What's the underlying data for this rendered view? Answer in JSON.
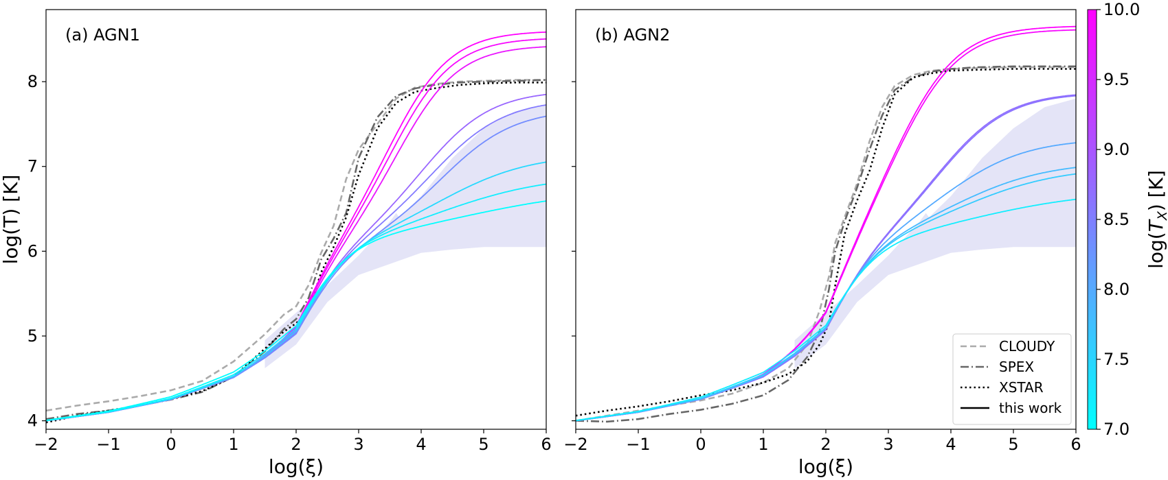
{
  "colors": {
    "cmap_low": "#00ffff",
    "cmap_high": "#ff00ff",
    "cloudy": "#aaaaaa",
    "spex": "#666666",
    "xstar": "#000000",
    "band": "#e4e4f7"
  },
  "chart_data": [
    {
      "type": "line",
      "panel_label": "(a) AGN1",
      "xlabel": "log(ξ)",
      "ylabel": "log(T)   [K]",
      "xlim": [
        -2,
        6
      ],
      "ylim": [
        3.9,
        8.85
      ],
      "xticks": [
        -2,
        -1,
        0,
        1,
        2,
        3,
        4,
        5,
        6
      ],
      "yticks": [
        4,
        5,
        6,
        7,
        8
      ],
      "shaded_band": {
        "upper": [
          [
            1.5,
            4.95
          ],
          [
            2.5,
            5.6
          ],
          [
            3.0,
            5.95
          ],
          [
            3.5,
            6.35
          ],
          [
            3.6,
            6.45
          ],
          [
            3.65,
            6.4
          ],
          [
            4.0,
            6.65
          ],
          [
            4.5,
            7.1
          ],
          [
            5.0,
            7.45
          ],
          [
            5.5,
            7.65
          ],
          [
            6.0,
            7.72
          ]
        ],
        "lower": [
          [
            6.0,
            6.05
          ],
          [
            5.0,
            6.05
          ],
          [
            4.5,
            6.02
          ],
          [
            4.0,
            5.98
          ],
          [
            3.0,
            5.72
          ],
          [
            2.5,
            5.4
          ],
          [
            2.0,
            4.9
          ],
          [
            1.5,
            4.62
          ]
        ]
      },
      "series": [
        {
          "name": "CLOUDY",
          "style": "dashed",
          "x": [
            -2,
            -1.5,
            -1,
            -0.5,
            0,
            0.5,
            1,
            1.5,
            1.8,
            2,
            2.2,
            2.4,
            2.6,
            2.8,
            3.0,
            3.3,
            3.6,
            3.9,
            4.2,
            4.6,
            5,
            5.5,
            6
          ],
          "y": [
            4.12,
            4.18,
            4.23,
            4.29,
            4.36,
            4.47,
            4.7,
            5.02,
            5.25,
            5.35,
            5.6,
            5.98,
            6.3,
            6.85,
            7.2,
            7.5,
            7.8,
            7.93,
            7.97,
            8.0,
            8.01,
            8.02,
            8.02
          ]
        },
        {
          "name": "SPEX",
          "style": "dashdot",
          "x": [
            -2,
            -1.5,
            -1,
            -0.5,
            0,
            0.5,
            1,
            1.5,
            1.8,
            2,
            2.2,
            2.4,
            2.6,
            2.8,
            3.0,
            3.3,
            3.6,
            3.9,
            4.2,
            4.6,
            5,
            5.5,
            6
          ],
          "y": [
            4.02,
            4.08,
            4.12,
            4.18,
            4.25,
            4.34,
            4.52,
            4.82,
            5.08,
            5.2,
            5.45,
            5.9,
            6.15,
            6.45,
            7.1,
            7.58,
            7.83,
            7.92,
            7.96,
            7.99,
            8.0,
            8.01,
            8.02
          ]
        },
        {
          "name": "XSTAR",
          "style": "dotted",
          "x": [
            -2,
            -1.5,
            -1,
            -0.5,
            0,
            0.5,
            1,
            1.5,
            1.8,
            2,
            2.2,
            2.4,
            2.6,
            2.8,
            3.0,
            3.3,
            3.6,
            3.9,
            4.2,
            4.6,
            5,
            5.5,
            6
          ],
          "y": [
            3.98,
            4.06,
            4.12,
            4.18,
            4.26,
            4.35,
            4.52,
            4.85,
            5.05,
            5.15,
            5.3,
            5.75,
            6.05,
            6.4,
            6.9,
            7.45,
            7.75,
            7.88,
            7.92,
            7.96,
            7.98,
            7.99,
            7.99
          ]
        },
        {
          "name": "this work",
          "style": "solid",
          "tx": 10.0,
          "plateau": 8.6,
          "x0": 3.55,
          "w": 0.48
        },
        {
          "name": "this work",
          "style": "solid",
          "tx": 9.9,
          "plateau": 8.52,
          "x0": 3.6,
          "w": 0.48
        },
        {
          "name": "this work",
          "style": "solid",
          "tx": 9.75,
          "plateau": 8.43,
          "x0": 3.68,
          "w": 0.48
        },
        {
          "name": "this work",
          "style": "solid",
          "tx": 8.8,
          "plateau": 7.9,
          "x0": 4.05,
          "w": 0.55
        },
        {
          "name": "this work",
          "style": "solid",
          "tx": 8.55,
          "plateau": 7.8,
          "x0": 4.2,
          "w": 0.58
        },
        {
          "name": "this work",
          "style": "solid",
          "tx": 8.35,
          "plateau": 7.68,
          "x0": 4.35,
          "w": 0.58
        },
        {
          "name": "this work",
          "style": "solid",
          "tx": 7.45,
          "plateau": 7.15,
          "x0": 4.35,
          "w": 0.72
        },
        {
          "name": "this work",
          "style": "solid",
          "tx": 7.2,
          "plateau": 6.9,
          "x0": 4.4,
          "w": 0.85
        },
        {
          "name": "this work",
          "style": "solid",
          "tx": 7.0,
          "plateau": 6.75,
          "x0": 4.7,
          "w": 1.1
        }
      ]
    },
    {
      "type": "line",
      "panel_label": "(b) AGN2",
      "xlabel": "log(ξ)",
      "ylabel": "",
      "xlim": [
        -2,
        6
      ],
      "ylim": [
        3.9,
        8.85
      ],
      "xticks": [
        -2,
        -1,
        0,
        1,
        2,
        3,
        4,
        5,
        6
      ],
      "yticks": [
        4,
        5,
        6,
        7,
        8
      ],
      "shaded_band": {
        "upper": [
          [
            1.5,
            4.95
          ],
          [
            2.5,
            5.6
          ],
          [
            3.0,
            5.95
          ],
          [
            3.5,
            6.35
          ],
          [
            3.6,
            6.45
          ],
          [
            3.65,
            6.4
          ],
          [
            4.0,
            6.65
          ],
          [
            4.5,
            7.1
          ],
          [
            5.0,
            7.45
          ],
          [
            5.5,
            7.7
          ],
          [
            6.0,
            7.8
          ]
        ],
        "lower": [
          [
            6.0,
            6.05
          ],
          [
            5.0,
            6.05
          ],
          [
            4.5,
            6.02
          ],
          [
            4.0,
            5.98
          ],
          [
            3.0,
            5.72
          ],
          [
            2.5,
            5.4
          ],
          [
            2.0,
            4.9
          ],
          [
            1.5,
            4.62
          ]
        ]
      },
      "series": [
        {
          "name": "CLOUDY",
          "style": "dashed",
          "x": [
            -2,
            -1.5,
            -1,
            -0.5,
            0,
            0.5,
            1,
            1.4,
            1.7,
            1.9,
            2.05,
            2.15,
            2.3,
            2.5,
            2.7,
            2.9,
            3.1,
            3.4,
            3.7,
            4.0,
            4.4,
            5,
            5.5,
            6
          ],
          "y": [
            4.0,
            4.06,
            4.12,
            4.18,
            4.24,
            4.32,
            4.45,
            4.62,
            4.9,
            5.3,
            5.7,
            6.1,
            6.4,
            6.8,
            7.3,
            7.7,
            7.95,
            8.08,
            8.13,
            8.15,
            8.16,
            8.17,
            8.17,
            8.17
          ]
        },
        {
          "name": "SPEX",
          "style": "dashdot",
          "x": [
            -2,
            -1.5,
            -1,
            -0.5,
            0,
            0.5,
            1,
            1.4,
            1.7,
            1.9,
            2.05,
            2.15,
            2.3,
            2.5,
            2.7,
            2.9,
            3.1,
            3.4,
            3.7,
            4.0,
            4.4,
            5,
            5.5,
            6
          ],
          "y": [
            4.0,
            3.99,
            4.02,
            4.08,
            4.13,
            4.2,
            4.3,
            4.48,
            4.75,
            5.05,
            5.55,
            6.0,
            6.35,
            6.75,
            7.2,
            7.6,
            7.9,
            8.05,
            8.12,
            8.15,
            8.17,
            8.18,
            8.18,
            8.18
          ]
        },
        {
          "name": "XSTAR",
          "style": "dotted",
          "x": [
            -2,
            -1.5,
            -1,
            -0.5,
            0,
            0.5,
            1,
            1.4,
            1.7,
            1.9,
            2.05,
            2.15,
            2.3,
            2.5,
            2.7,
            2.9,
            3.1,
            3.4,
            3.7,
            4.0,
            4.4,
            5,
            5.5,
            6
          ],
          "y": [
            4.06,
            4.12,
            4.17,
            4.23,
            4.3,
            4.36,
            4.45,
            4.55,
            4.7,
            4.9,
            5.15,
            5.6,
            6.2,
            6.6,
            6.95,
            7.45,
            7.85,
            8.05,
            8.1,
            8.13,
            8.14,
            8.15,
            8.15,
            8.15
          ]
        },
        {
          "name": "this work",
          "style": "solid",
          "tx": 10.0,
          "plateau": 8.66,
          "x0": 3.2,
          "w": 0.5
        },
        {
          "name": "this work",
          "style": "solid",
          "tx": 9.9,
          "plateau": 8.62,
          "x0": 3.22,
          "w": 0.5
        },
        {
          "name": "this work",
          "style": "solid",
          "tx": 8.7,
          "plateau": 7.88,
          "x0": 3.85,
          "w": 0.55
        },
        {
          "name": "this work",
          "style": "solid",
          "tx": 8.65,
          "plateau": 7.87,
          "x0": 3.87,
          "w": 0.55
        },
        {
          "name": "this work",
          "style": "solid",
          "tx": 8.0,
          "plateau": 7.33,
          "x0": 3.95,
          "w": 0.65
        },
        {
          "name": "this work",
          "style": "solid",
          "tx": 7.8,
          "plateau": 7.06,
          "x0": 4.1,
          "w": 0.75
        },
        {
          "name": "this work",
          "style": "solid",
          "tx": 7.6,
          "plateau": 7.0,
          "x0": 4.2,
          "w": 0.8
        },
        {
          "name": "this work",
          "style": "solid",
          "tx": 7.2,
          "plateau": 6.72,
          "x0": 4.4,
          "w": 1.0
        }
      ],
      "legend": {
        "position": "lower-right",
        "entries": [
          {
            "label": "CLOUDY",
            "style": "dashed"
          },
          {
            "label": "SPEX",
            "style": "dashdot"
          },
          {
            "label": "XSTAR",
            "style": "dotted"
          },
          {
            "label": "this work",
            "style": "solid"
          }
        ]
      }
    }
  ],
  "colorbar": {
    "label": "log(T_X)   [K]",
    "label_main": "log(",
    "label_var": "T",
    "label_sub": "X",
    "label_close": ")   [K]",
    "range": [
      7.0,
      10.0
    ],
    "ticks": [
      "7.0",
      "7.5",
      "8.0",
      "8.5",
      "9.0",
      "9.5",
      "10.0"
    ]
  }
}
